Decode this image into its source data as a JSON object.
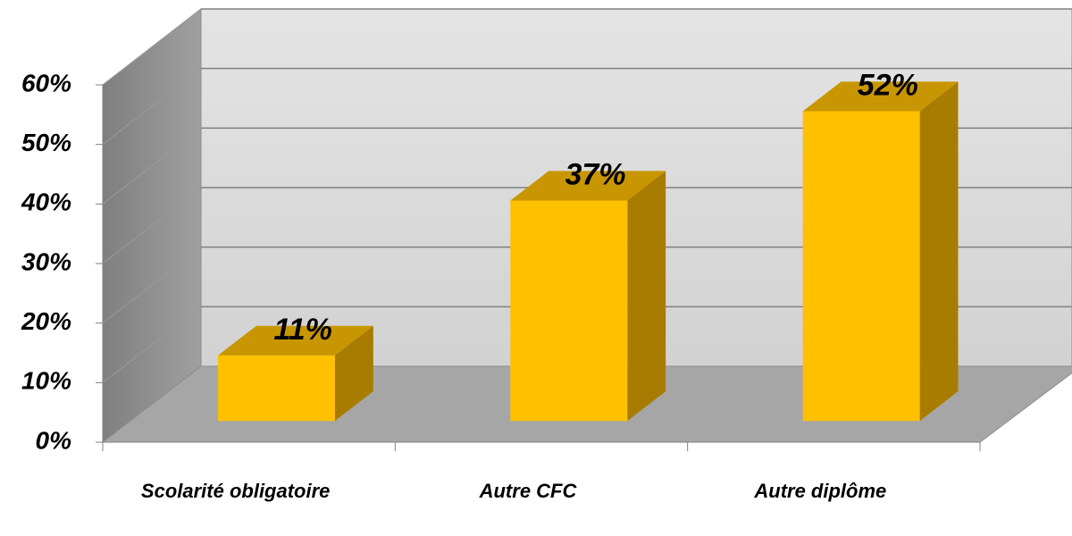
{
  "chart_data": {
    "type": "bar3d",
    "categories": [
      "Scolarité obligatoire",
      "Autre CFC",
      "Autre diplôme"
    ],
    "values": [
      11,
      37,
      52
    ],
    "value_labels": [
      "11%",
      "37%",
      "52%"
    ],
    "color": "#ffc000",
    "ylim": [
      0,
      60
    ],
    "yticks": [
      {
        "value": 0,
        "label": "0%"
      },
      {
        "value": 10,
        "label": "10%"
      },
      {
        "value": 20,
        "label": "20%"
      },
      {
        "value": 30,
        "label": "30%"
      },
      {
        "value": 40,
        "label": "40%"
      },
      {
        "value": 50,
        "label": "50%"
      },
      {
        "value": 60,
        "label": "60%"
      }
    ],
    "grid": true
  }
}
